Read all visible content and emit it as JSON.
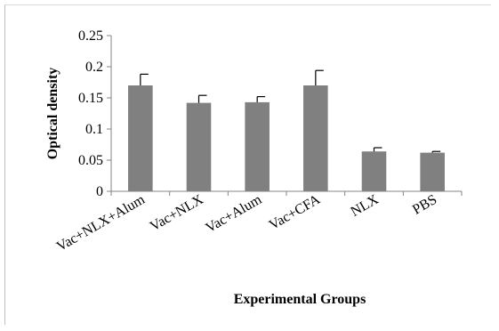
{
  "chart_data": {
    "type": "bar",
    "categories": [
      "Vac+NLX+Alum",
      "Vac+NLX",
      "Vac+Alum",
      "Vac+CFA",
      "NLX",
      "PBS"
    ],
    "series": [
      {
        "values": [
          0.17,
          0.142,
          0.143,
          0.17,
          0.064,
          0.062
        ],
        "errors": [
          0.018,
          0.012,
          0.009,
          0.024,
          0.006,
          0.002
        ]
      }
    ],
    "title": "",
    "xlabel": "Experimental Groups",
    "ylabel": "Optical density",
    "ylim": [
      0,
      0.25
    ],
    "yticks": [
      0,
      0.05,
      0.1,
      0.15,
      0.2,
      0.25
    ],
    "ytick_labels": [
      "0",
      "0.05",
      "0.1",
      "0.15",
      "0.2",
      "0.25"
    ],
    "grid": false,
    "bar_color": "#808080",
    "error_bar_color": "#000000"
  }
}
